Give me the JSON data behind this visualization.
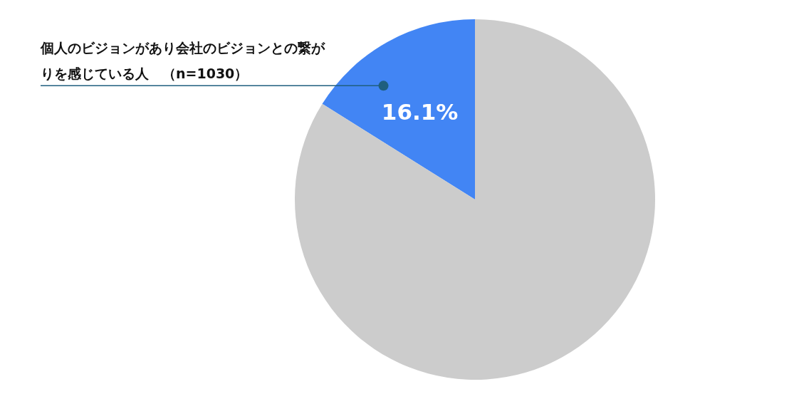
{
  "chart_data": {
    "type": "pie",
    "categories": [
      "個人のビジョンがあり会社のビジョンとの繋がりを感じている人　（n=1030）",
      null
    ],
    "values": [
      16.1,
      83.9
    ],
    "colors": [
      "#4285f4",
      "#cccccc"
    ],
    "value_labels": [
      "16.1%",
      null
    ]
  }
}
